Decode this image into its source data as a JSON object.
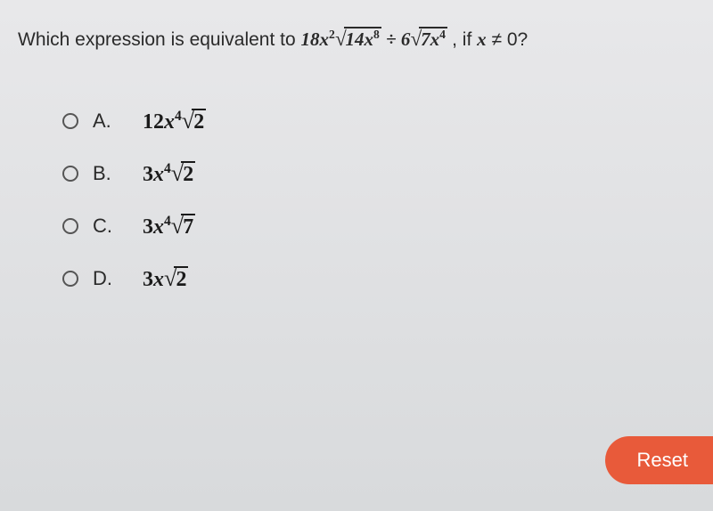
{
  "question": {
    "prefix": "Which expression is equivalent to ",
    "expr_18": "18",
    "expr_x2": "x",
    "expr_x2_sup": "2",
    "sqrt1_sym": "√",
    "sqrt1_inner_14": "14",
    "sqrt1_inner_x": "x",
    "sqrt1_inner_exp": "8",
    "div": " ÷ ",
    "expr_6": "6",
    "sqrt2_sym": "√",
    "sqrt2_inner_7": "7",
    "sqrt2_inner_x": "x",
    "sqrt2_inner_exp": "4",
    "cond_prefix": ", if ",
    "cond_x": "x",
    "cond_ne": " ≠ 0?"
  },
  "options": [
    {
      "letter": "A.",
      "coeff": "12",
      "var": "x",
      "exp": "4",
      "sqrt_sym": "√",
      "sqrt_val": "2"
    },
    {
      "letter": "B.",
      "coeff": "3",
      "var": "x",
      "exp": "4",
      "sqrt_sym": "√",
      "sqrt_val": "2"
    },
    {
      "letter": "C.",
      "coeff": "3",
      "var": "x",
      "exp": "4",
      "sqrt_sym": "√",
      "sqrt_val": "7"
    },
    {
      "letter": "D.",
      "coeff": "3",
      "var": "x",
      "exp": "",
      "sqrt_sym": "√",
      "sqrt_val": "2"
    }
  ],
  "buttons": {
    "reset": "Reset"
  },
  "colors": {
    "reset_bg": "#e85a3a",
    "text": "#2a2a2a"
  }
}
